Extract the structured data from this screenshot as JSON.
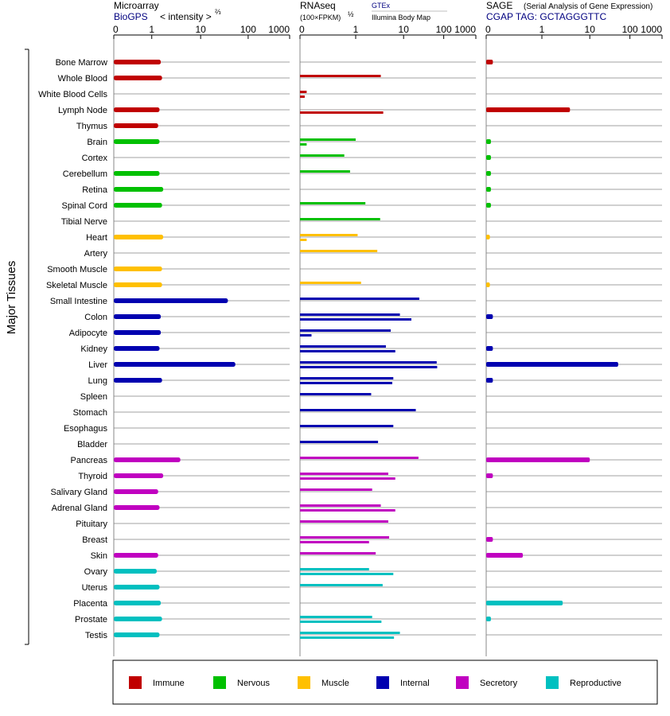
{
  "panels": {
    "microarray": {
      "title": "Microarray",
      "source": "BioGPS",
      "unit": "< intensity >",
      "unit_exp": "⅔"
    },
    "rnaseq": {
      "title": "RNAseq",
      "unit": "(100×FPKM)",
      "unit_exp": "½",
      "source_primary": "GTEx",
      "source_secondary": "Illumina Body Map"
    },
    "sage": {
      "title": "SAGE",
      "subtitle": "(Serial Analysis of Gene Expression)",
      "tag": "CGAP TAG: GCTAGGGTTC"
    }
  },
  "y_group_label": "Major Tissues",
  "legend": [
    {
      "label": "Immune",
      "color": "#c00000"
    },
    {
      "label": "Nervous",
      "color": "#00c000"
    },
    {
      "label": "Muscle",
      "color": "#ffc000"
    },
    {
      "label": "Internal",
      "color": "#0000b0"
    },
    {
      "label": "Secretory",
      "color": "#c000c0"
    },
    {
      "label": "Reproductive",
      "color": "#00c0c0"
    }
  ],
  "chart_data": [
    {
      "type": "bar",
      "title": "Microarray",
      "scale": "power 2/3",
      "xlim": [
        0,
        1000
      ],
      "xticks": [
        "0",
        "1",
        "10",
        "100",
        "1000"
      ],
      "tick_values": [
        0,
        1,
        10,
        100,
        1000
      ],
      "categories": [
        "Bone Marrow",
        "Whole Blood",
        "White Blood Cells",
        "Lymph Node",
        "Thymus",
        "Brain",
        "Cortex",
        "Cerebellum",
        "Retina",
        "Spinal Cord",
        "Tibial Nerve",
        "Heart",
        "Artery",
        "Smooth Muscle",
        "Skeletal Muscle",
        "Small Intestine",
        "Colon",
        "Adipocyte",
        "Kidney",
        "Liver",
        "Lung",
        "Spleen",
        "Stomach",
        "Esophagus",
        "Bladder",
        "Pancreas",
        "Thyroid",
        "Salivary Gland",
        "Adrenal Gland",
        "Pituitary",
        "Breast",
        "Skin",
        "Ovary",
        "Uterus",
        "Placenta",
        "Prostate",
        "Testis"
      ],
      "groups": [
        "Immune",
        "Immune",
        "Immune",
        "Immune",
        "Immune",
        "Nervous",
        "Nervous",
        "Nervous",
        "Nervous",
        "Nervous",
        "Nervous",
        "Muscle",
        "Muscle",
        "Muscle",
        "Muscle",
        "Internal",
        "Internal",
        "Internal",
        "Internal",
        "Internal",
        "Internal",
        "Internal",
        "Internal",
        "Internal",
        "Internal",
        "Secretory",
        "Secretory",
        "Secretory",
        "Secretory",
        "Secretory",
        "Secretory",
        "Secretory",
        "Reproductive",
        "Reproductive",
        "Reproductive",
        "Reproductive",
        "Reproductive"
      ],
      "values": [
        1.6,
        1.7,
        null,
        1.5,
        1.4,
        1.5,
        null,
        1.5,
        1.8,
        1.7,
        null,
        1.8,
        null,
        1.7,
        1.7,
        36,
        1.6,
        1.6,
        1.5,
        52,
        1.7,
        null,
        null,
        null,
        null,
        4.0,
        1.8,
        1.4,
        1.5,
        null,
        null,
        1.4,
        1.3,
        1.5,
        1.6,
        1.7,
        1.5
      ]
    },
    {
      "type": "bar",
      "title": "RNAseq",
      "scale": "power 1/2",
      "xlim": [
        0,
        1000
      ],
      "xticks": [
        "0",
        "1",
        "10",
        "100",
        "1000"
      ],
      "tick_values": [
        0,
        1,
        10,
        100,
        1000
      ],
      "categories": [
        "Bone Marrow",
        "Whole Blood",
        "White Blood Cells",
        "Lymph Node",
        "Thymus",
        "Brain",
        "Cortex",
        "Cerebellum",
        "Retina",
        "Spinal Cord",
        "Tibial Nerve",
        "Heart",
        "Artery",
        "Smooth Muscle",
        "Skeletal Muscle",
        "Small Intestine",
        "Colon",
        "Adipocyte",
        "Kidney",
        "Liver",
        "Lung",
        "Spleen",
        "Stomach",
        "Esophagus",
        "Bladder",
        "Pancreas",
        "Thyroid",
        "Salivary Gland",
        "Adrenal Gland",
        "Pituitary",
        "Breast",
        "Skin",
        "Ovary",
        "Uterus",
        "Placenta",
        "Prostate",
        "Testis"
      ],
      "series": [
        {
          "name": "GTEx",
          "values": [
            null,
            3.3,
            0.01,
            null,
            null,
            1.0,
            0.55,
            0.75,
            null,
            1.6,
            3.2,
            1.1,
            2.8,
            null,
            1.3,
            23,
            8.3,
            5.3,
            4.2,
            64,
            6.0,
            2.1,
            19,
            6.0,
            2.9,
            22,
            4.7,
            2.2,
            3.3,
            4.7,
            4.9,
            2.6,
            1.9,
            3.6,
            null,
            2.2,
            8.3
          ]
        },
        {
          "name": "Illumina Body Map",
          "values": [
            null,
            null,
            0.005,
            3.7,
            null,
            0.01,
            null,
            null,
            null,
            null,
            null,
            0.01,
            null,
            null,
            null,
            null,
            15,
            0.03,
            6.6,
            66,
            5.7,
            null,
            null,
            null,
            null,
            null,
            6.6,
            null,
            6.6,
            null,
            1.9,
            null,
            6.0,
            null,
            null,
            3.4,
            6.2
          ]
        }
      ]
    },
    {
      "type": "bar",
      "title": "SAGE",
      "scale": "power 1/2",
      "xlim": [
        0,
        1000
      ],
      "xticks": [
        "0",
        "1",
        "10",
        "100",
        "1000"
      ],
      "tick_values": [
        0,
        1,
        10,
        100,
        1000
      ],
      "categories": [
        "Bone Marrow",
        "Whole Blood",
        "White Blood Cells",
        "Lymph Node",
        "Thymus",
        "Brain",
        "Cortex",
        "Cerebellum",
        "Retina",
        "Spinal Cord",
        "Tibial Nerve",
        "Heart",
        "Artery",
        "Smooth Muscle",
        "Skeletal Muscle",
        "Small Intestine",
        "Colon",
        "Adipocyte",
        "Kidney",
        "Liver",
        "Lung",
        "Spleen",
        "Stomach",
        "Esophagus",
        "Bladder",
        "Pancreas",
        "Thyroid",
        "Salivary Gland",
        "Adrenal Gland",
        "Pituitary",
        "Breast",
        "Skin",
        "Ovary",
        "Uterus",
        "Placenta",
        "Prostate",
        "Testis"
      ],
      "values": [
        0.01,
        null,
        null,
        3.8,
        null,
        0.005,
        0.005,
        0.005,
        0.005,
        0.005,
        null,
        0.003,
        null,
        null,
        0.003,
        null,
        0.01,
        null,
        0.01,
        48,
        0.01,
        null,
        null,
        null,
        null,
        10,
        0.01,
        null,
        null,
        null,
        0.01,
        0.35,
        null,
        null,
        2.7,
        0.005,
        null
      ]
    }
  ]
}
